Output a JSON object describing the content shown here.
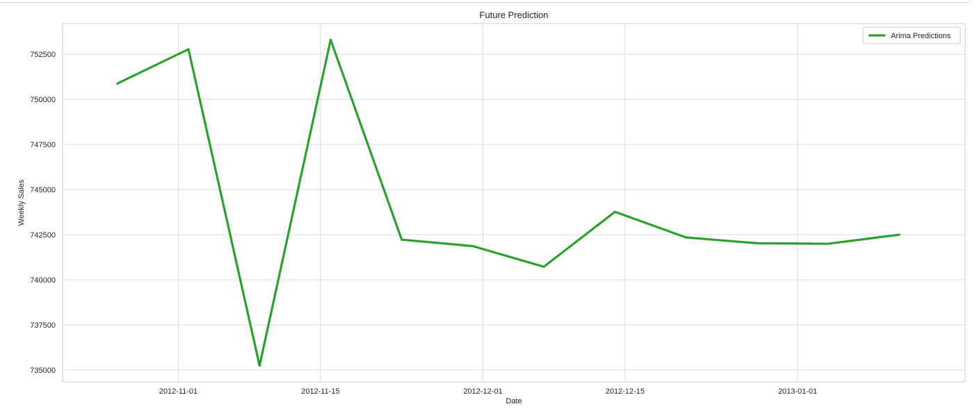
{
  "chart_data": {
    "type": "line",
    "title": "Future Prediction",
    "xlabel": "Date",
    "ylabel": "Weekly Sales",
    "x": [
      "2012-10-26",
      "2012-11-02",
      "2012-11-09",
      "2012-11-16",
      "2012-11-23",
      "2012-11-30",
      "2012-12-07",
      "2012-12-14",
      "2012-12-21",
      "2012-12-28",
      "2013-01-04",
      "2013-01-11"
    ],
    "series": [
      {
        "name": "Arima Predictions",
        "color": "#2ca02c",
        "values": [
          750880,
          752780,
          735250,
          753300,
          742230,
          741870,
          740730,
          743770,
          742350,
          742030,
          742000,
          742500
        ]
      }
    ],
    "xticks": [
      "2012-11-01",
      "2012-11-15",
      "2012-12-01",
      "2012-12-15",
      "2013-01-01"
    ],
    "xtick_labels": [
      "2012-11-01",
      "2012-11-15",
      "2012-12-01",
      "2012-12-15",
      "2013-01-01"
    ],
    "yticks": [
      735000,
      737500,
      740000,
      742500,
      745000,
      747500,
      750000,
      752500
    ],
    "ytick_labels": [
      "735000",
      "737500",
      "740000",
      "742500",
      "745000",
      "747500",
      "750000",
      "752500"
    ],
    "xlim": [
      "2012-10-20.6",
      "2013-01-17.5"
    ],
    "ylim": [
      734350,
      754200
    ],
    "grid": true,
    "legend_position": "top-right"
  }
}
